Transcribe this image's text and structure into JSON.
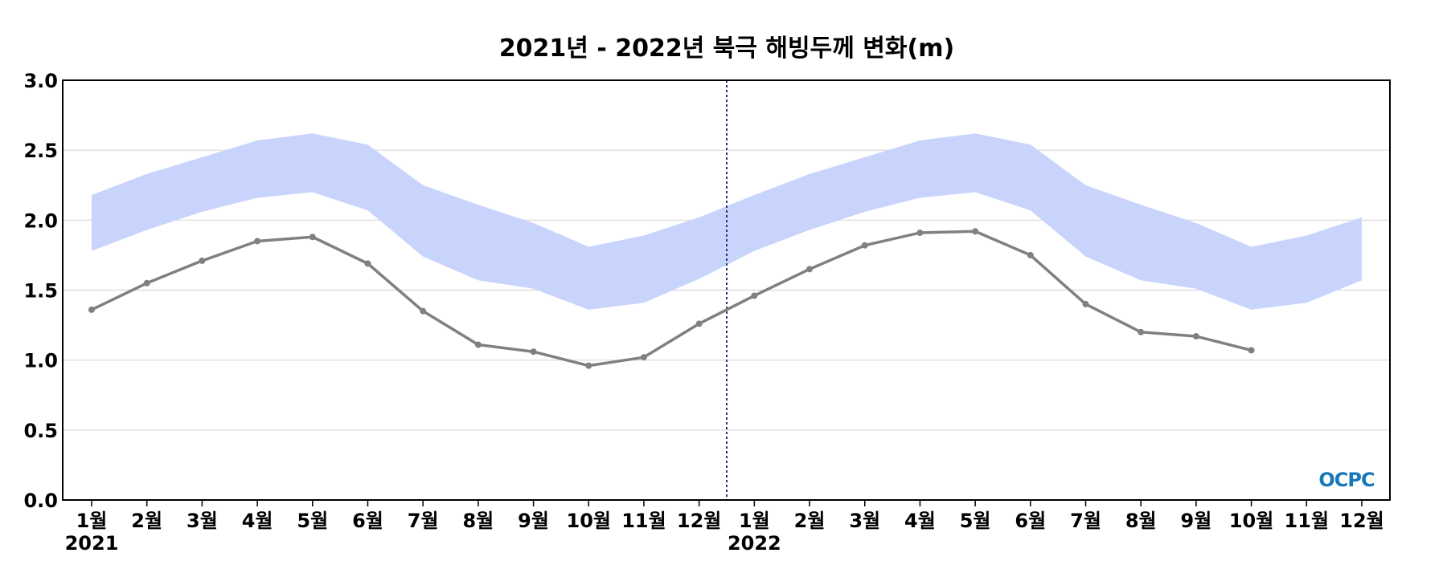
{
  "chart_data": {
    "type": "line",
    "title": "2021년 - 2022년 북극 해빙두께 변화(m)",
    "xlabel": "",
    "ylabel": "",
    "ylim": [
      0,
      3.0
    ],
    "yticks": [
      "0.0",
      "0.5",
      "1.0",
      "1.5",
      "2.0",
      "2.5",
      "3.0"
    ],
    "grid": true,
    "year_labels": [
      "2021",
      "2022"
    ],
    "categories": [
      "1월",
      "2월",
      "3월",
      "4월",
      "5월",
      "6월",
      "7월",
      "8월",
      "9월",
      "10월",
      "11월",
      "12월",
      "1월",
      "2월",
      "3월",
      "4월",
      "5월",
      "6월",
      "7월",
      "8월",
      "9월",
      "10월",
      "11월",
      "12월"
    ],
    "series": [
      {
        "values": [
          1.36,
          1.55,
          1.71,
          1.85,
          1.88,
          1.69,
          1.35,
          1.11,
          1.06,
          0.96,
          1.02,
          1.26,
          1.46,
          1.65,
          1.82,
          1.91,
          1.92,
          1.75,
          1.4,
          1.2,
          1.17,
          1.07,
          null,
          null
        ],
        "color": "#808080"
      }
    ],
    "band": {
      "upper": [
        2.18,
        2.33,
        2.45,
        2.57,
        2.62,
        2.54,
        2.25,
        2.11,
        1.98,
        1.81,
        1.89,
        2.02,
        2.18,
        2.33,
        2.45,
        2.57,
        2.62,
        2.54,
        2.25,
        2.11,
        1.98,
        1.81,
        1.89,
        2.02
      ],
      "lower": [
        1.78,
        1.93,
        2.06,
        2.16,
        2.2,
        2.07,
        1.74,
        1.57,
        1.51,
        1.36,
        1.41,
        1.58,
        1.78,
        1.93,
        2.06,
        2.16,
        2.2,
        2.07,
        1.74,
        1.57,
        1.51,
        1.36,
        1.41,
        1.57
      ],
      "color": "#c8d4fc"
    },
    "year_divider_color": "#1f3a6e",
    "logo": "OCPC"
  }
}
